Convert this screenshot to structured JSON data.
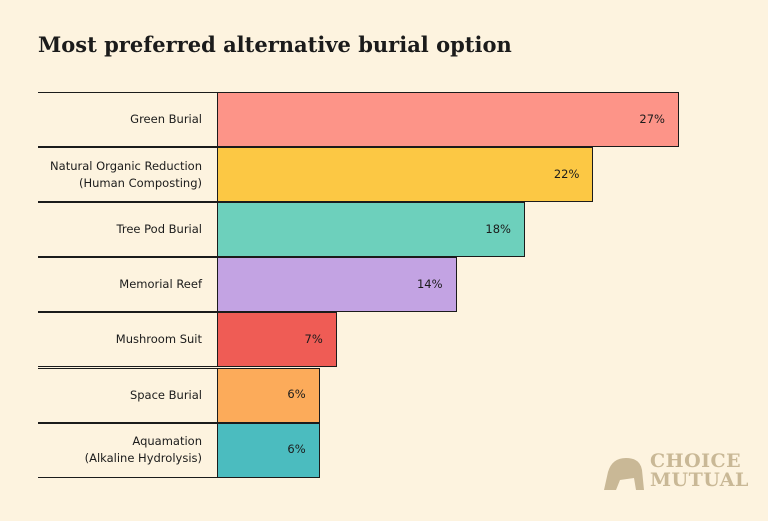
{
  "chart_data": {
    "type": "bar",
    "orientation": "horizontal",
    "title": "Most preferred alternative burial option",
    "categories": [
      "Green Burial",
      "Natural Organic Reduction\n(Human Composting)",
      "Tree Pod Burial",
      "Memorial Reef",
      "Mushroom Suit",
      "Space Burial",
      "Aquamation\n(Alkaline Hydrolysis)"
    ],
    "values": [
      27,
      22,
      18,
      14,
      7,
      6,
      6
    ],
    "value_labels": [
      "27%",
      "22%",
      "18%",
      "14%",
      "7%",
      "6%",
      "6%"
    ],
    "colors": [
      "#fd9488",
      "#fcc844",
      "#6dd0bc",
      "#c3a3e3",
      "#ef5c55",
      "#fcab5a",
      "#4bbcbf"
    ]
  },
  "logo": {
    "lines": [
      "CHOICE",
      "MUTUAL"
    ]
  }
}
